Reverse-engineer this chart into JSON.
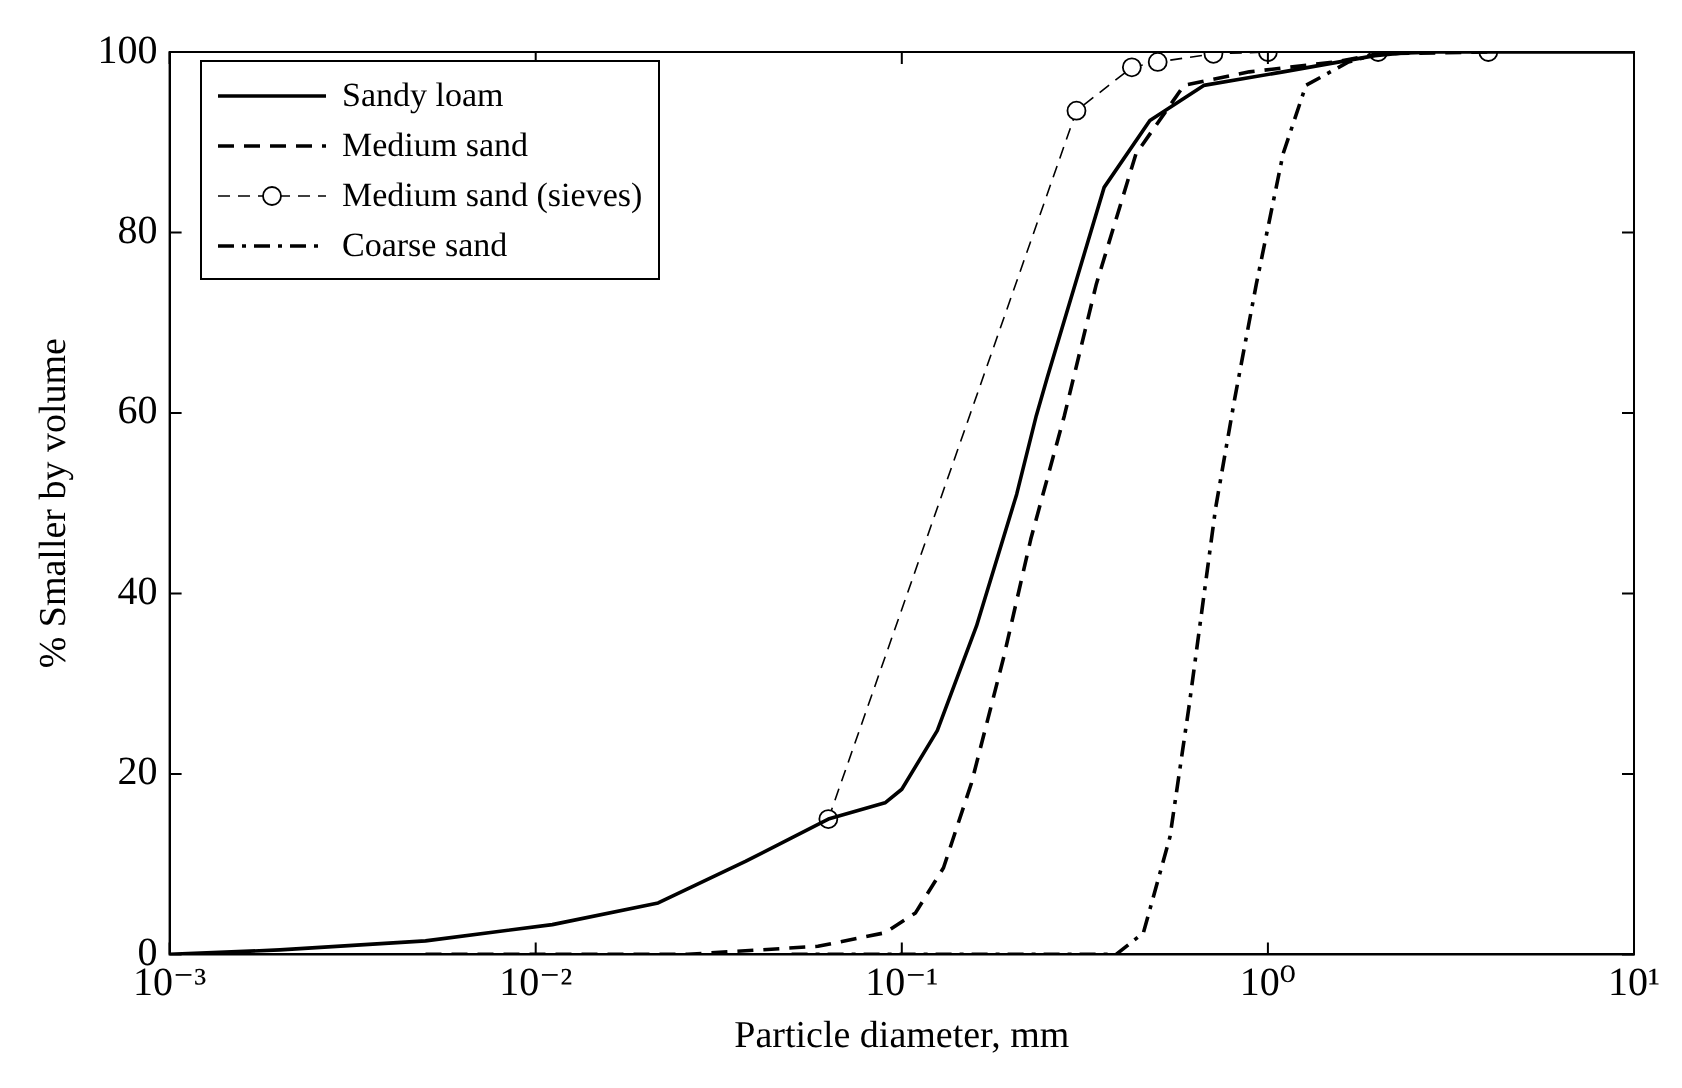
{
  "chart_data": {
    "type": "line",
    "xlabel": "Particle diameter, mm",
    "ylabel": "% Smaller by volume",
    "log": "x",
    "grid": false,
    "legend": "top left",
    "xlim": [
      0.001,
      10
    ],
    "xticks": [
      {
        "value": 0.001,
        "label": "10⁻³"
      },
      {
        "value": 0.01,
        "label": "10⁻²"
      },
      {
        "value": 0.1,
        "label": "10⁻¹"
      },
      {
        "value": 1,
        "label": "10⁰"
      },
      {
        "value": 10,
        "label": "10¹"
      }
    ],
    "ylim": [
      0,
      100
    ],
    "yticks": [
      0,
      20,
      40,
      60,
      80,
      100
    ],
    "series": [
      {
        "name": "Sandy loam",
        "color": "#000000",
        "line_style": "solid",
        "marker": "none",
        "x": [
          0.001,
          0.002,
          0.005,
          0.0111,
          0.0216,
          0.0374,
          0.063,
          0.09,
          0.1,
          0.125,
          0.16,
          0.206,
          0.233,
          0.25,
          0.357,
          0.476,
          0.668,
          1.1,
          1.96,
          2.5,
          10
        ],
        "values": [
          0,
          0.5,
          1.5,
          3.3,
          5.7,
          10.3,
          15,
          16.8,
          18.3,
          24.8,
          36.4,
          51,
          59.7,
          64,
          85,
          92.4,
          96.3,
          97.8,
          99.6,
          100,
          100
        ]
      },
      {
        "name": "Medium sand",
        "color": "#000000",
        "line_style": "dashed",
        "marker": "none",
        "x": [
          0.005,
          0.026,
          0.059,
          0.09,
          0.109,
          0.13,
          0.155,
          0.19,
          0.225,
          0.278,
          0.34,
          0.436,
          0.59,
          0.89,
          1.53,
          2,
          4
        ],
        "values": [
          0,
          0,
          0.9,
          2.4,
          4.6,
          9.6,
          19,
          33,
          46,
          59.7,
          74.3,
          88.7,
          96.3,
          97.8,
          98.9,
          99.8,
          100
        ]
      },
      {
        "name": "Medium sand (sieves)",
        "color": "#000000",
        "line_style": "dashed",
        "marker": "circle",
        "x": [
          0.063,
          0.3,
          0.425,
          0.5,
          0.71,
          1,
          2,
          4
        ],
        "values": [
          15,
          93.5,
          98.3,
          98.9,
          99.8,
          100,
          100,
          100
        ]
      },
      {
        "name": "Coarse sand",
        "color": "#000000",
        "line_style": "dashdot",
        "marker": "none",
        "x": [
          0.05,
          0.385,
          0.457,
          0.54,
          0.61,
          0.72,
          0.81,
          0.93,
          1.1,
          1.27,
          1.66,
          2,
          3
        ],
        "values": [
          0,
          0,
          2.4,
          13,
          27.7,
          49.5,
          61.4,
          74.3,
          88.7,
          96.3,
          98.9,
          99.8,
          100
        ]
      }
    ]
  }
}
